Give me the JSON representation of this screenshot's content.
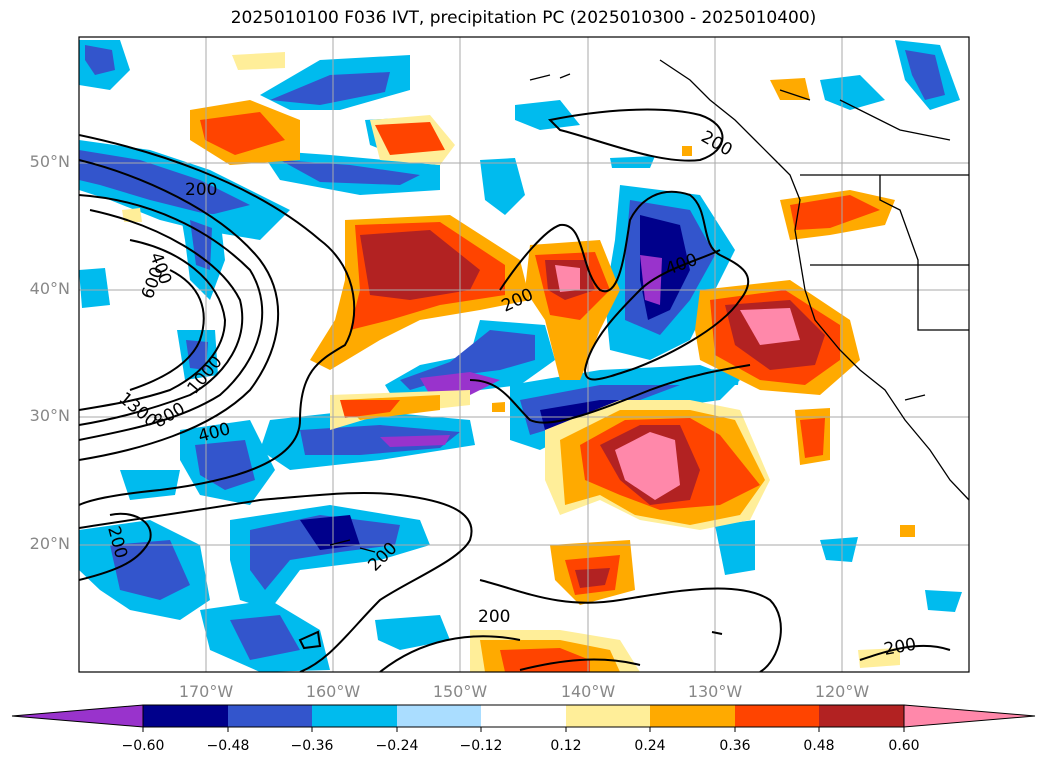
{
  "title": "2025010100 F036 IVT, precipitation PC (2025010300 - 2025010400)",
  "map": {
    "lon_range": [
      -180,
      -110
    ],
    "lat_range": [
      10,
      60
    ],
    "lat_ticks": [
      "50°N",
      "40°N",
      "30°N",
      "20°N"
    ],
    "lon_ticks": [
      "170°W",
      "160°W",
      "150°W",
      "140°W",
      "130°W",
      "120°W"
    ],
    "ivt_contour_labels": [
      "200",
      "400",
      "600",
      "1000",
      "1300",
      "800",
      "400",
      "200",
      "200",
      "400",
      "200",
      "200",
      "200",
      "200"
    ]
  },
  "colorbar": {
    "levels": [
      "−0.60",
      "−0.48",
      "−0.36",
      "−0.24",
      "−0.12",
      "0.12",
      "0.24",
      "0.36",
      "0.48",
      "0.60"
    ],
    "colors": [
      "#9933cc",
      "#00008b",
      "#3355cc",
      "#00bbee",
      "#aaddff",
      "#ffffff",
      "#ffee99",
      "#ffaa00",
      "#ff4400",
      "#b22222",
      "#ff88aa"
    ],
    "extend": "both"
  }
}
